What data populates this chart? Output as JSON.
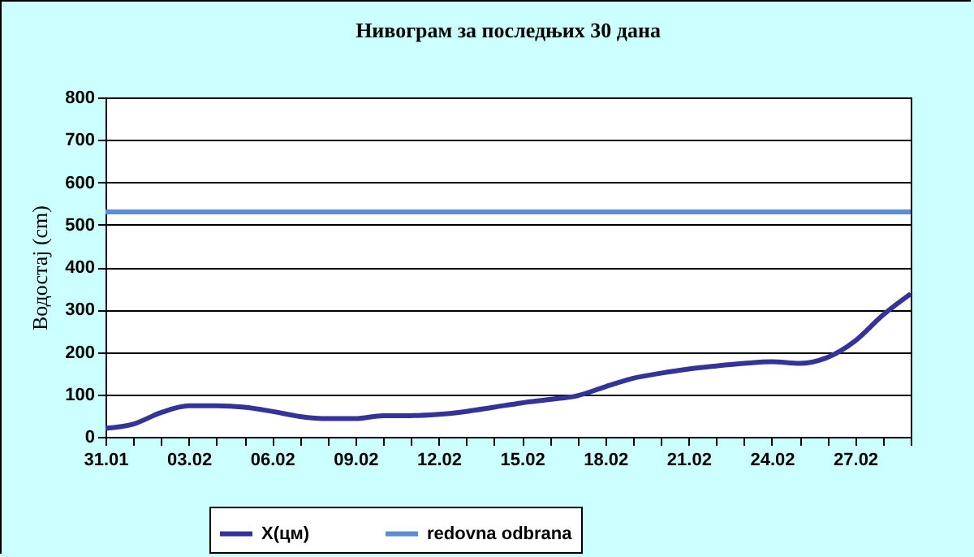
{
  "chart_data": {
    "type": "line",
    "title": "Нивограм за последњих 30 дана",
    "ylabel": "Водостај (cm)",
    "categories": [
      "31.01",
      null,
      null,
      "03.02",
      null,
      null,
      "06.02",
      null,
      null,
      "09.02",
      null,
      null,
      "12.02",
      null,
      null,
      "15.02",
      null,
      null,
      "18.02",
      null,
      null,
      "21.02",
      null,
      null,
      "24.02",
      null,
      null,
      "27.02",
      null,
      null
    ],
    "series": [
      {
        "name": "X(цм)",
        "color": "#333399",
        "values": [
          20,
          30,
          57,
          73,
          73,
          70,
          60,
          48,
          43,
          43,
          50,
          50,
          53,
          60,
          70,
          80,
          88,
          97,
          118,
          138,
          150,
          160,
          167,
          173,
          177,
          173,
          187,
          226,
          287,
          337
        ]
      }
    ],
    "ref_lines": [
      {
        "axis": "y",
        "value": 530,
        "label": "redovna odbrana",
        "color": "#5b8ed6"
      }
    ],
    "ylim": [
      0,
      800
    ],
    "yticks": [
      0,
      100,
      200,
      300,
      400,
      500,
      600,
      700,
      800
    ],
    "grid": "y",
    "legend": "bottom",
    "marker": "none",
    "line_style": "solid"
  }
}
